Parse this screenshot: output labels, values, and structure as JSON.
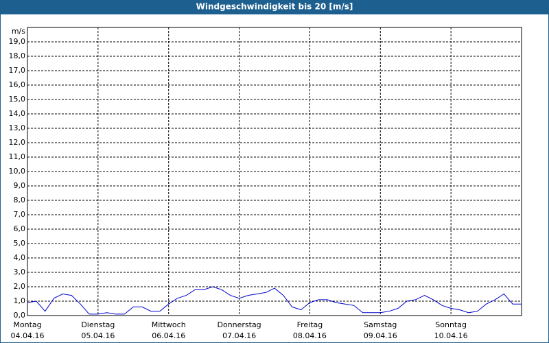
{
  "chart_data": {
    "type": "line",
    "title": "Windgeschwindigkeit bis 20 [m/s]",
    "y_label": "m/s",
    "x": [
      0,
      3,
      6,
      9,
      12,
      15,
      18,
      21,
      24,
      27,
      30,
      33,
      36,
      39,
      42,
      45,
      48,
      51,
      54,
      57,
      60,
      63,
      66,
      69,
      72,
      75,
      78,
      81,
      84,
      87,
      90,
      93,
      96,
      99,
      102,
      105,
      108,
      111,
      114,
      117,
      120,
      123,
      126,
      129,
      132,
      135,
      138,
      141,
      144,
      147,
      150,
      153,
      156,
      159,
      162,
      165,
      168
    ],
    "series": [
      {
        "name": "Windgeschwindigkeit",
        "color": "#0000cc",
        "values": [
          0.9,
          1.0,
          0.3,
          1.2,
          1.5,
          1.4,
          0.8,
          0.1,
          0.1,
          0.2,
          0.1,
          0.1,
          0.6,
          0.6,
          0.3,
          0.3,
          0.8,
          1.2,
          1.4,
          1.8,
          1.8,
          2.0,
          1.8,
          1.4,
          1.2,
          1.4,
          1.5,
          1.6,
          1.9,
          1.4,
          0.6,
          0.4,
          0.9,
          1.1,
          1.1,
          0.9,
          0.8,
          0.7,
          0.2,
          0.2,
          0.2,
          0.3,
          0.5,
          1.0,
          1.1,
          1.4,
          1.1,
          0.7,
          0.5,
          0.4,
          0.2,
          0.3,
          0.8,
          1.1,
          1.5,
          0.8,
          0.8
        ]
      }
    ],
    "xlim": [
      0,
      168
    ],
    "xticks": [
      {
        "value": 0,
        "label": [
          "Montag",
          "04.04.16"
        ]
      },
      {
        "value": 24,
        "label": [
          "Dienstag",
          "05.04.16"
        ]
      },
      {
        "value": 48,
        "label": [
          "Mittwoch",
          "06.04.16"
        ]
      },
      {
        "value": 72,
        "label": [
          "Donnerstag",
          "07.04.16"
        ]
      },
      {
        "value": 96,
        "label": [
          "Freitag",
          "08.04.16"
        ]
      },
      {
        "value": 120,
        "label": [
          "Samstag",
          "09.04.16"
        ]
      },
      {
        "value": 144,
        "label": [
          "Sonntag",
          "10.04.16"
        ]
      }
    ],
    "ylim": [
      0,
      20
    ],
    "yticks": [
      {
        "value": 0,
        "label": "0,0"
      },
      {
        "value": 1,
        "label": "1,0"
      },
      {
        "value": 2,
        "label": "2,0"
      },
      {
        "value": 3,
        "label": "3,0"
      },
      {
        "value": 4,
        "label": "4,0"
      },
      {
        "value": 5,
        "label": "5,0"
      },
      {
        "value": 6,
        "label": "6,0"
      },
      {
        "value": 7,
        "label": "7,0"
      },
      {
        "value": 8,
        "label": "8,0"
      },
      {
        "value": 9,
        "label": "9,0"
      },
      {
        "value": 10,
        "label": "10,0"
      },
      {
        "value": 11,
        "label": "11,0"
      },
      {
        "value": 12,
        "label": "12,0"
      },
      {
        "value": 13,
        "label": "13,0"
      },
      {
        "value": 14,
        "label": "14,0"
      },
      {
        "value": 15,
        "label": "15,0"
      },
      {
        "value": 16,
        "label": "16,0"
      },
      {
        "value": 17,
        "label": "17,0"
      },
      {
        "value": 18,
        "label": "18,0"
      },
      {
        "value": 19,
        "label": "19,0"
      }
    ],
    "grid": true
  }
}
